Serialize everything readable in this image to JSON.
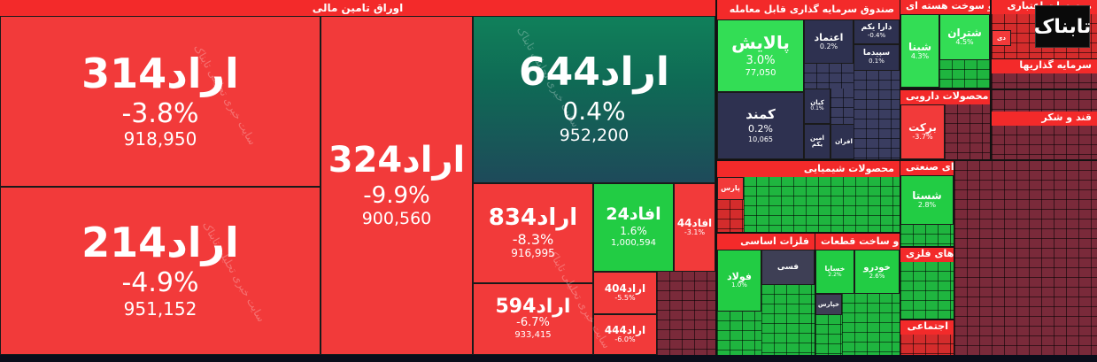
{
  "groups": {
    "bonds": "اوراق تامین مالی",
    "fund": "صندوق سرمایه گذاری قابل معامله",
    "fuel": "فراورده های نفتی، کک و سوخت هسته ای",
    "credit": "موسسات اعتباری",
    "invest": "سرمایه گذاریها",
    "pharma": "محصولات دارویی",
    "food": "قند و شکر",
    "chem": "محصولات شیمیایی",
    "metals": "فلزات اساسی",
    "auto": "خودرو و ساخت قطعات",
    "multi": "چند رشته ای صنعتی",
    "minerals": "استخراج کانه های فلزی",
    "social": "اجتماعی"
  },
  "tiles": {
    "arad314": {
      "name": "اراد314",
      "pct": "-3.8%",
      "val": "918,950"
    },
    "arad214": {
      "name": "اراد214",
      "pct": "-4.9%",
      "val": "951,152"
    },
    "arad324": {
      "name": "اراد324",
      "pct": "-9.9%",
      "val": "900,560"
    },
    "arad644": {
      "name": "اراد644",
      "pct": "0.4%",
      "val": "952,200"
    },
    "arad834": {
      "name": "اراد834",
      "pct": "-8.3%",
      "val": "916,995"
    },
    "afad24": {
      "name": "افاد24",
      "pct": "1.6%",
      "val": "1,000,594"
    },
    "afad44": {
      "name": "افاد44",
      "pct": "-3.1%"
    },
    "arad594": {
      "name": "اراد594",
      "pct": "-6.7%",
      "val": "933,415"
    },
    "arad404": {
      "name": "اراد404",
      "pct": "-5.5%"
    },
    "arad444": {
      "name": "اراد444",
      "pct": "-6.0%"
    },
    "palaesh": {
      "name": "پالایش",
      "pct": "3.0%",
      "val": "77,050"
    },
    "etemad": {
      "name": "اعتماد",
      "pct": "0.2%"
    },
    "darayekom": {
      "name": "دارا یکم",
      "pct": "-0.4%"
    },
    "sepidma": {
      "name": "سپیدما",
      "pct": "0.1%"
    },
    "kamand": {
      "name": "کمند",
      "pct": "0.2%",
      "val": "10,065"
    },
    "kian": {
      "name": "کیان",
      "pct": "0.1%"
    },
    "aminyekom": {
      "name": "امین یکم"
    },
    "afran": {
      "name": "افران"
    },
    "shetran": {
      "name": "شتران",
      "pct": "4.5%"
    },
    "shebna": {
      "name": "شبنا",
      "pct": "4.3%"
    },
    "barkat": {
      "name": "برکت",
      "pct": "-3.7%"
    },
    "shasta": {
      "name": "شستا",
      "pct": "2.8%"
    },
    "fars": {
      "name": "پارس"
    },
    "foolad": {
      "name": "فولاد",
      "pct": "1.0%"
    },
    "fesi": {
      "name": "فسی"
    },
    "khodro": {
      "name": "خودرو",
      "pct": "2.6%"
    },
    "khesapa": {
      "name": "خساپا",
      "pct": "2.2%"
    },
    "kharis": {
      "name": "خپارس"
    },
    "dey": {
      "name": "دی"
    }
  },
  "watermark": "سایت خبری تحلیلی تابناک",
  "logo": "تابناک",
  "colors": {
    "red": "#f23a3a",
    "green": "#22cc44",
    "teal": "#10805a",
    "navy": "#2e3150"
  }
}
